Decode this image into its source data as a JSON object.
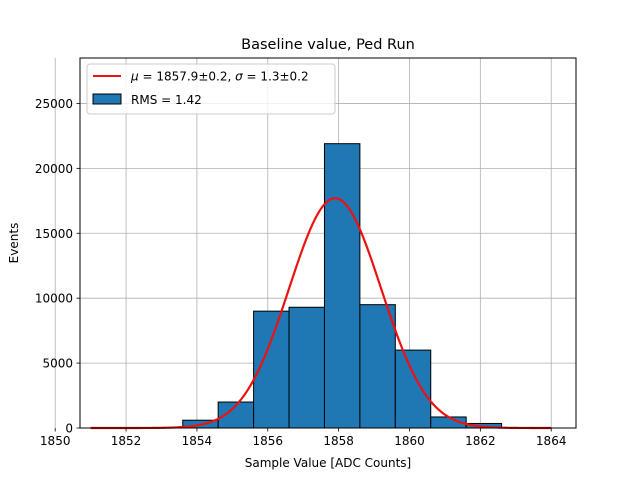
{
  "chart_data": {
    "type": "bar",
    "title": "Baseline value, Ped Run",
    "xlabel": "Sample Value [ADC Counts]",
    "ylabel": "Events",
    "xlim": [
      1850.7,
      1864.7
    ],
    "ylim": [
      0,
      28500
    ],
    "xticks": [
      1850,
      1852,
      1854,
      1856,
      1858,
      1860,
      1862,
      1864
    ],
    "yticks": [
      0,
      5000,
      10000,
      15000,
      20000,
      25000
    ],
    "grid": true,
    "legend_position": "top-left",
    "histogram": {
      "name": "RMS = 1.42",
      "color": "#1f77b4",
      "edgecolor": "#000000",
      "bin_edges": [
        1853.6,
        1854.6,
        1855.6,
        1856.6,
        1857.6,
        1858.6,
        1859.6,
        1860.6,
        1861.6,
        1862.6
      ],
      "counts": [
        600,
        2000,
        9000,
        9300,
        21900,
        9500,
        6000,
        850,
        350
      ]
    },
    "fit": {
      "name_prefix": "μ = 1857.9±0.2, σ = 1.3±0.2",
      "mu_label": "μ",
      "mu_value": "1857.9±0.2",
      "sigma_label": "σ",
      "sigma_value": "1.3±0.2",
      "color": "#ee1111",
      "mu": 1857.9,
      "sigma": 1.3,
      "amplitude": 17700,
      "x_range": [
        1851,
        1864
      ]
    }
  }
}
